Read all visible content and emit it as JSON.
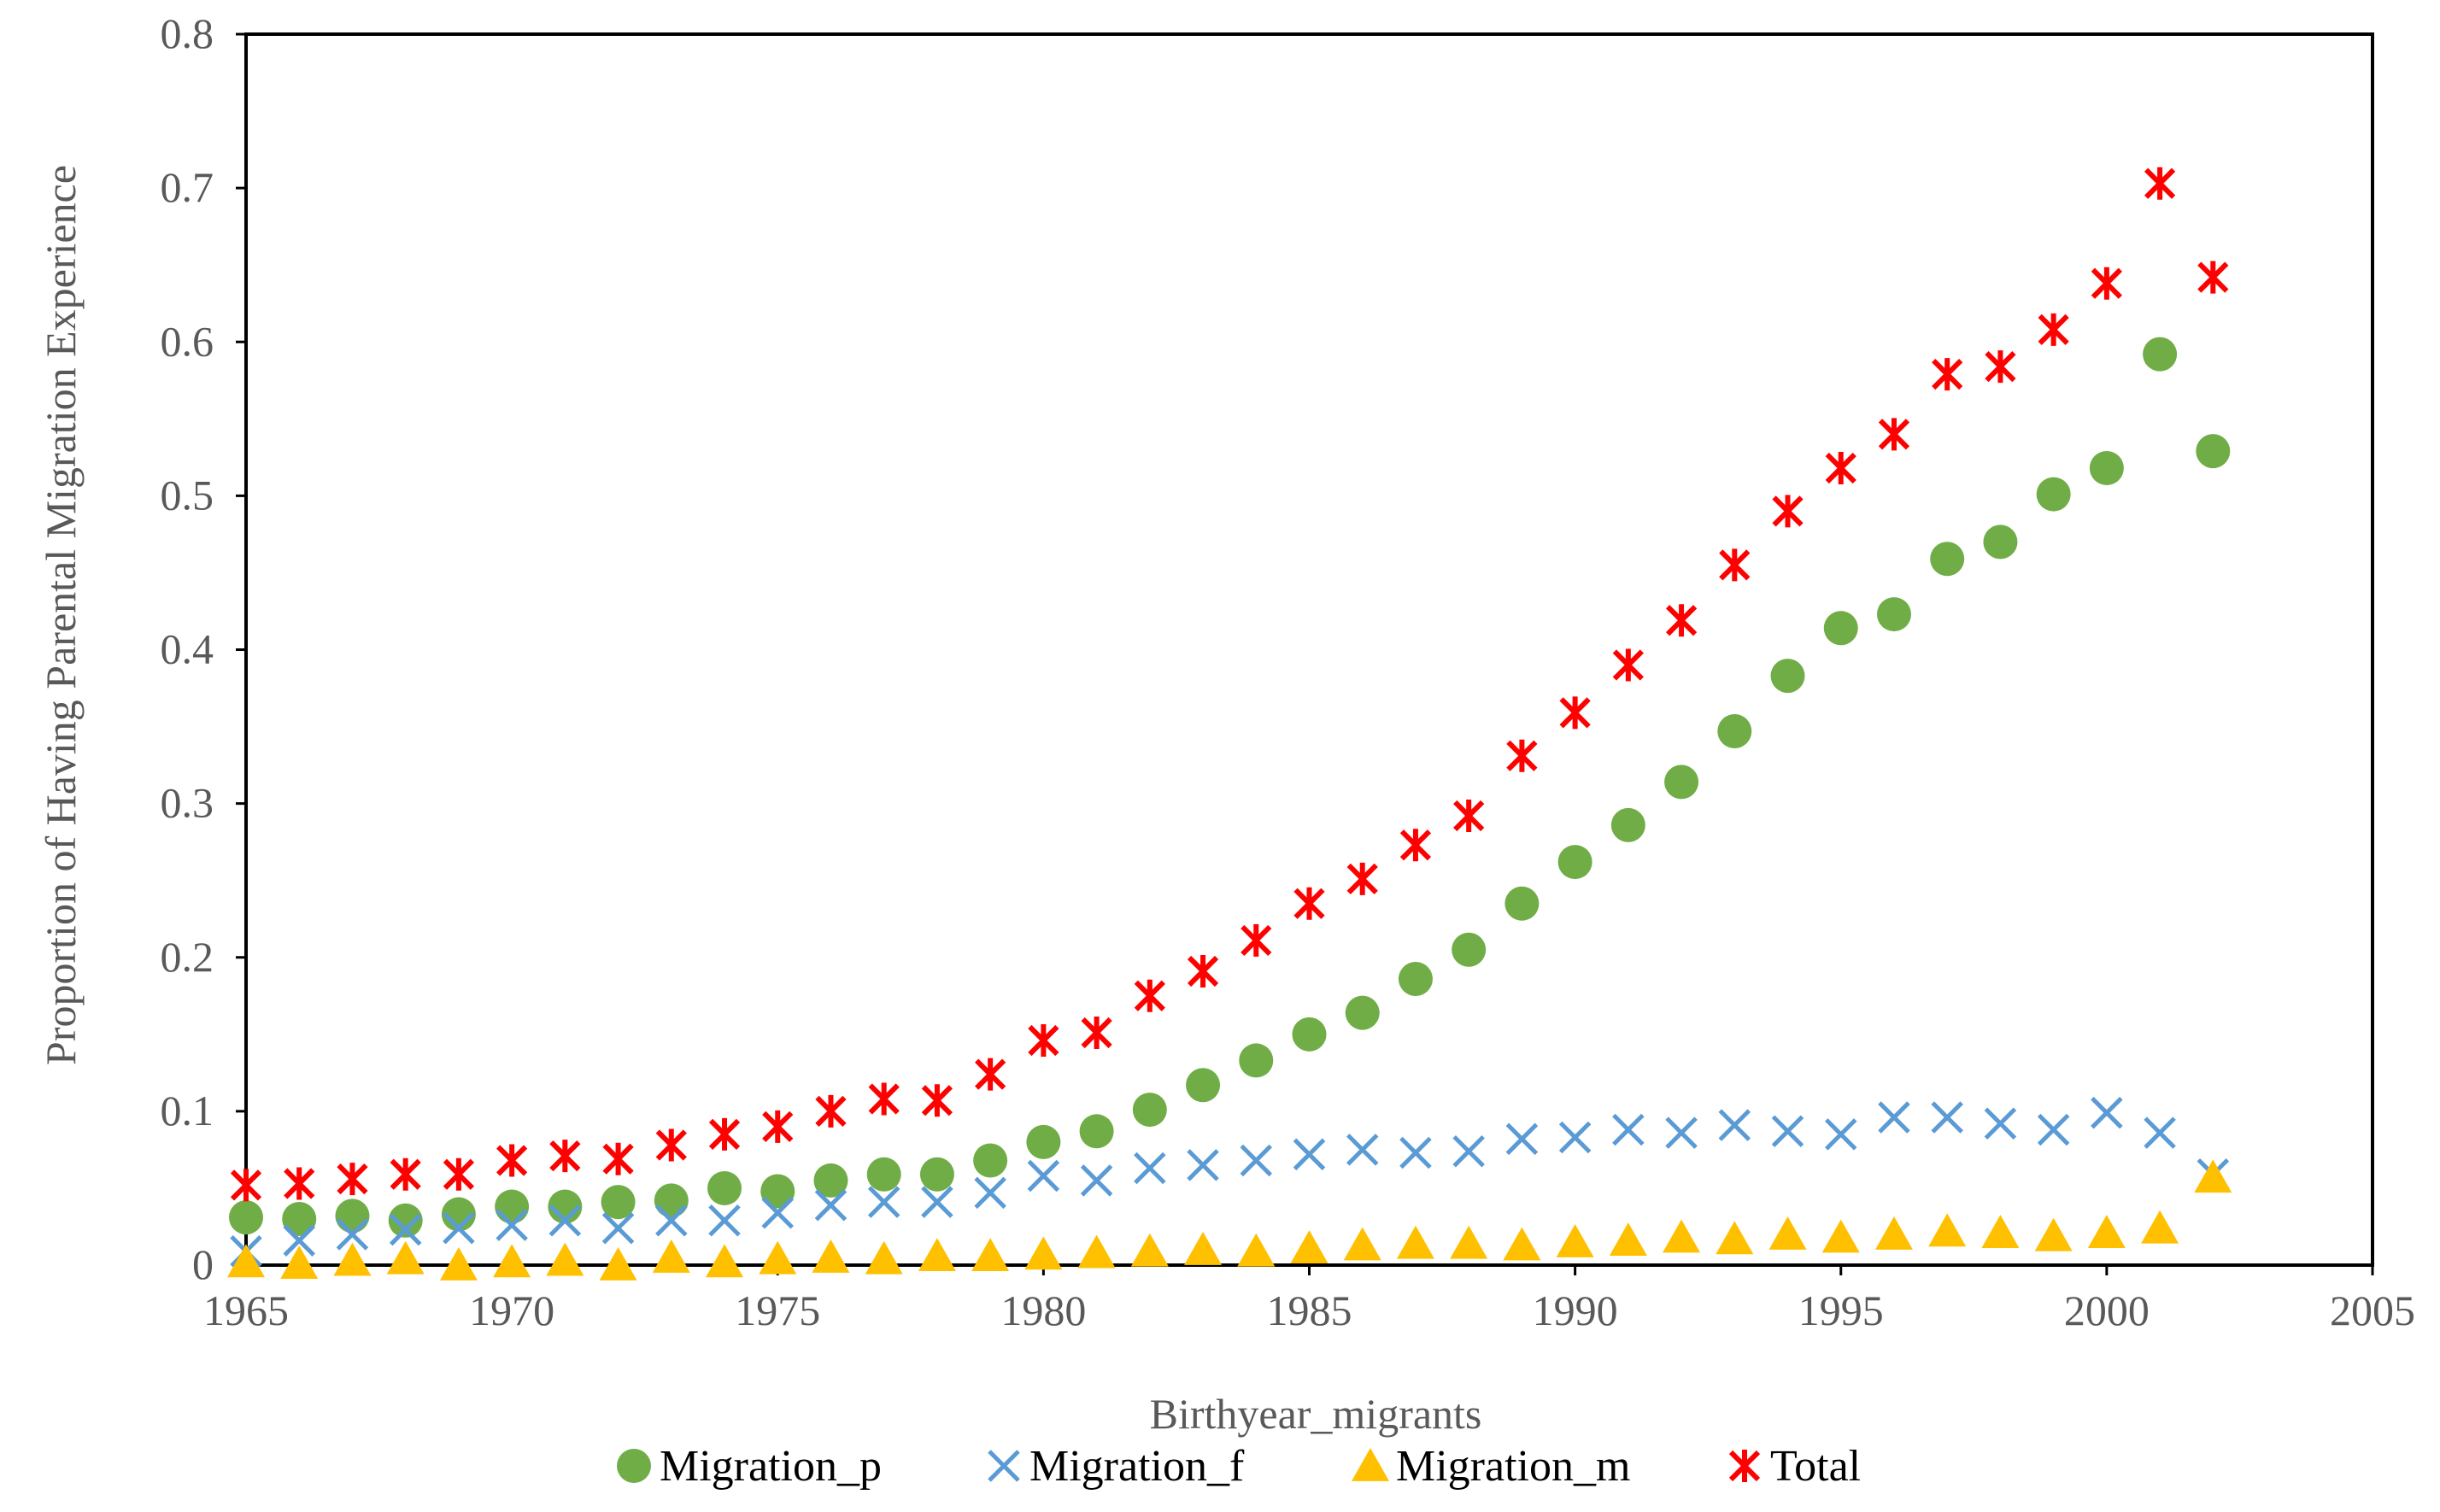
{
  "chart_data": {
    "type": "scatter",
    "title": "",
    "xlabel": "Birthyear_migrants",
    "ylabel": "Proportion of Having Parental Migration Experience",
    "xlim": [
      1965,
      2005
    ],
    "ylim": [
      0,
      0.8
    ],
    "xticks": [
      1965,
      1970,
      1975,
      1980,
      1985,
      1990,
      1995,
      2000,
      2005
    ],
    "yticks": [
      0,
      0.1,
      0.2,
      0.3,
      0.4,
      0.5,
      0.6,
      0.7,
      0.8
    ],
    "xtick_labels": [
      "1965",
      "1970",
      "1975",
      "1980",
      "1985",
      "1990",
      "1995",
      "2000",
      "2005"
    ],
    "ytick_labels": [
      "0",
      "0.1",
      "0.2",
      "0.3",
      "0.4",
      "0.5",
      "0.6",
      "0.7",
      "0.8"
    ],
    "grid": false,
    "legend_position": "bottom",
    "x": [
      1965,
      1966,
      1967,
      1968,
      1969,
      1970,
      1971,
      1972,
      1973,
      1974,
      1975,
      1976,
      1977,
      1978,
      1979,
      1980,
      1981,
      1982,
      1983,
      1984,
      1985,
      1986,
      1987,
      1988,
      1989,
      1990,
      1991,
      1992,
      1993,
      1994,
      1995,
      1996,
      1997,
      1998,
      1999,
      2000,
      2001,
      2002
    ],
    "series": [
      {
        "name": "Migration_p",
        "marker": "circle",
        "color": "#70AD47",
        "values": [
          0.031,
          0.03,
          0.032,
          0.029,
          0.033,
          0.038,
          0.038,
          0.041,
          0.042,
          0.05,
          0.048,
          0.055,
          0.059,
          0.059,
          0.068,
          0.08,
          0.087,
          0.101,
          0.117,
          0.133,
          0.15,
          0.164,
          0.186,
          0.205,
          0.235,
          0.262,
          0.286,
          0.314,
          0.347,
          0.383,
          0.414,
          0.423,
          0.459,
          0.47,
          0.501,
          0.518,
          0.592,
          0.529
        ]
      },
      {
        "name": "Migration_f",
        "marker": "x",
        "color": "#5B9BD5",
        "values": [
          0.009,
          0.016,
          0.02,
          0.023,
          0.024,
          0.026,
          0.029,
          0.024,
          0.029,
          0.029,
          0.034,
          0.039,
          0.041,
          0.041,
          0.047,
          0.058,
          0.055,
          0.063,
          0.065,
          0.068,
          0.072,
          0.075,
          0.073,
          0.074,
          0.082,
          0.083,
          0.088,
          0.086,
          0.091,
          0.087,
          0.085,
          0.096,
          0.096,
          0.092,
          0.088,
          0.099,
          0.086,
          0.059
        ]
      },
      {
        "name": "Migration_m",
        "marker": "triangle",
        "color": "#FFC000",
        "values": [
          0.002,
          0.001,
          0.003,
          0.004,
          0.0,
          0.002,
          0.003,
          0.0,
          0.005,
          0.002,
          0.004,
          0.005,
          0.004,
          0.006,
          0.006,
          0.007,
          0.008,
          0.009,
          0.01,
          0.009,
          0.011,
          0.013,
          0.014,
          0.014,
          0.013,
          0.015,
          0.016,
          0.018,
          0.017,
          0.02,
          0.018,
          0.02,
          0.022,
          0.021,
          0.019,
          0.021,
          0.024,
          0.057
        ]
      },
      {
        "name": "Total",
        "marker": "asterisk",
        "color": "#FF0000",
        "values": [
          0.052,
          0.053,
          0.056,
          0.059,
          0.059,
          0.068,
          0.071,
          0.069,
          0.078,
          0.085,
          0.09,
          0.1,
          0.108,
          0.107,
          0.124,
          0.146,
          0.151,
          0.175,
          0.191,
          0.211,
          0.235,
          0.251,
          0.273,
          0.292,
          0.331,
          0.359,
          0.39,
          0.419,
          0.455,
          0.49,
          0.518,
          0.54,
          0.579,
          0.584,
          0.608,
          0.638,
          0.703,
          0.642
        ]
      }
    ]
  }
}
